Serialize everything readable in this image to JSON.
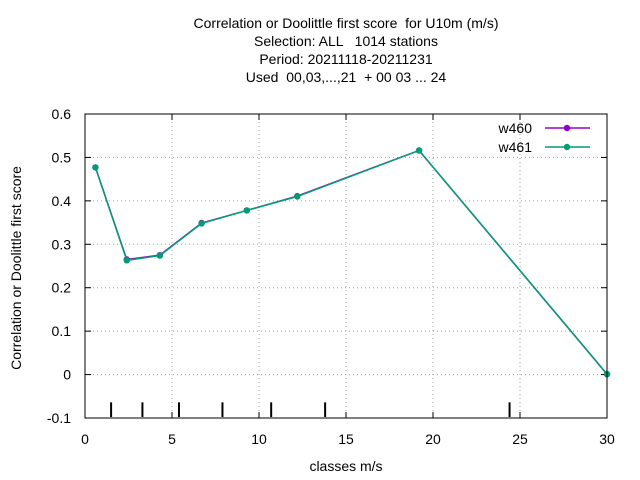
{
  "chart_data": {
    "type": "line",
    "title_lines": [
      "Correlation or Doolittle first score  for U10m (m/s)",
      "Selection: ALL   1014 stations",
      "Period: 20211118-20211231",
      "Used  00,03,...,21  + 00 03 ... 24"
    ],
    "xlabel": "classes m/s",
    "ylabel": "Correlation or Doolittle first score",
    "xlim": [
      0,
      30
    ],
    "ylim": [
      -0.1,
      0.6
    ],
    "x_ticks": [
      0,
      5,
      10,
      15,
      20,
      25,
      30
    ],
    "x_tick_labels": [
      "0",
      "5",
      "10",
      "15",
      "20",
      "25",
      "30"
    ],
    "y_ticks": [
      -0.1,
      0,
      0.1,
      0.2,
      0.3,
      0.4,
      0.5,
      0.6
    ],
    "y_tick_labels": [
      "-0.1",
      "0",
      "0.1",
      "0.2",
      "0.3",
      "0.4",
      "0.5",
      "0.6"
    ],
    "grid": true,
    "legend_position": "top-right",
    "class_bounds": [
      1.5,
      3.3,
      5.4,
      7.9,
      10.7,
      13.8,
      24.4
    ],
    "series": [
      {
        "name": "w460",
        "color": "#9400d3",
        "x": [
          0.6,
          2.4,
          4.3,
          6.7,
          9.3,
          12.2,
          19.2,
          30.0
        ],
        "y": [
          0.477,
          0.265,
          0.275,
          0.349,
          0.378,
          0.411,
          0.516,
          0.001
        ]
      },
      {
        "name": "w461",
        "color": "#009e73",
        "x": [
          0.6,
          2.4,
          4.3,
          6.7,
          9.3,
          12.2,
          19.2,
          30.0
        ],
        "y": [
          0.477,
          0.263,
          0.274,
          0.348,
          0.378,
          0.41,
          0.516,
          0.001
        ]
      }
    ]
  }
}
